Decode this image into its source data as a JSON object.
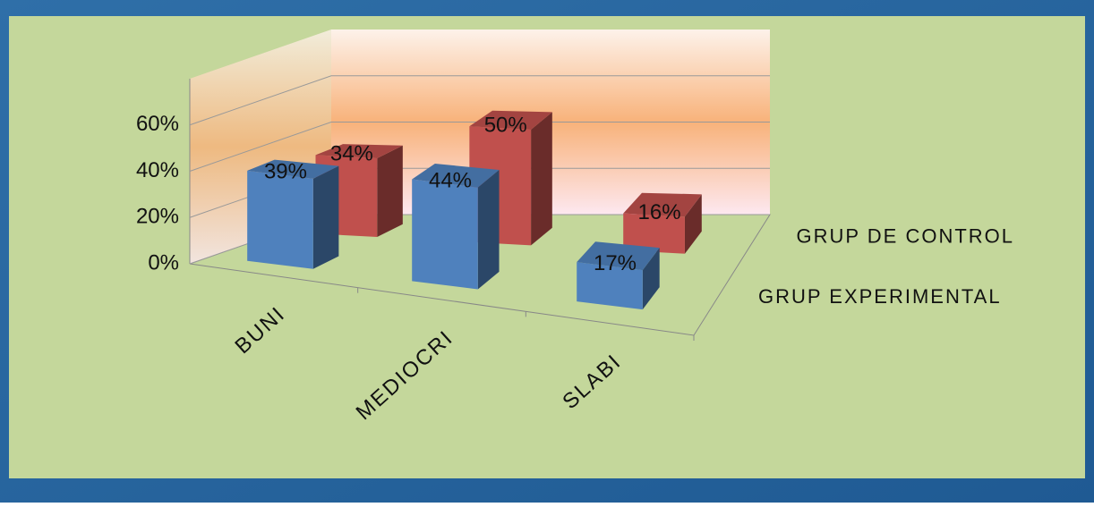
{
  "chart_data": {
    "type": "bar3d",
    "categories": [
      "BUNI",
      "MEDIOCRI",
      "SLABI"
    ],
    "series": [
      {
        "name": "GRUP EXPERIMENTAL",
        "color": "#4f81bd",
        "values": [
          39,
          44,
          17
        ],
        "value_labels": [
          "39%",
          "44%",
          "17%"
        ]
      },
      {
        "name": "GRUP DE CONTROL",
        "color": "#c0504d",
        "values": [
          34,
          50,
          16
        ],
        "value_labels": [
          "34%",
          "50%",
          "16%"
        ]
      }
    ],
    "ylim": [
      0,
      80
    ],
    "yticks": [
      {
        "value": 0,
        "label": "0%"
      },
      {
        "value": 20,
        "label": "20%"
      },
      {
        "value": 40,
        "label": "40%"
      },
      {
        "value": 60,
        "label": "60%"
      }
    ],
    "grid": true
  }
}
